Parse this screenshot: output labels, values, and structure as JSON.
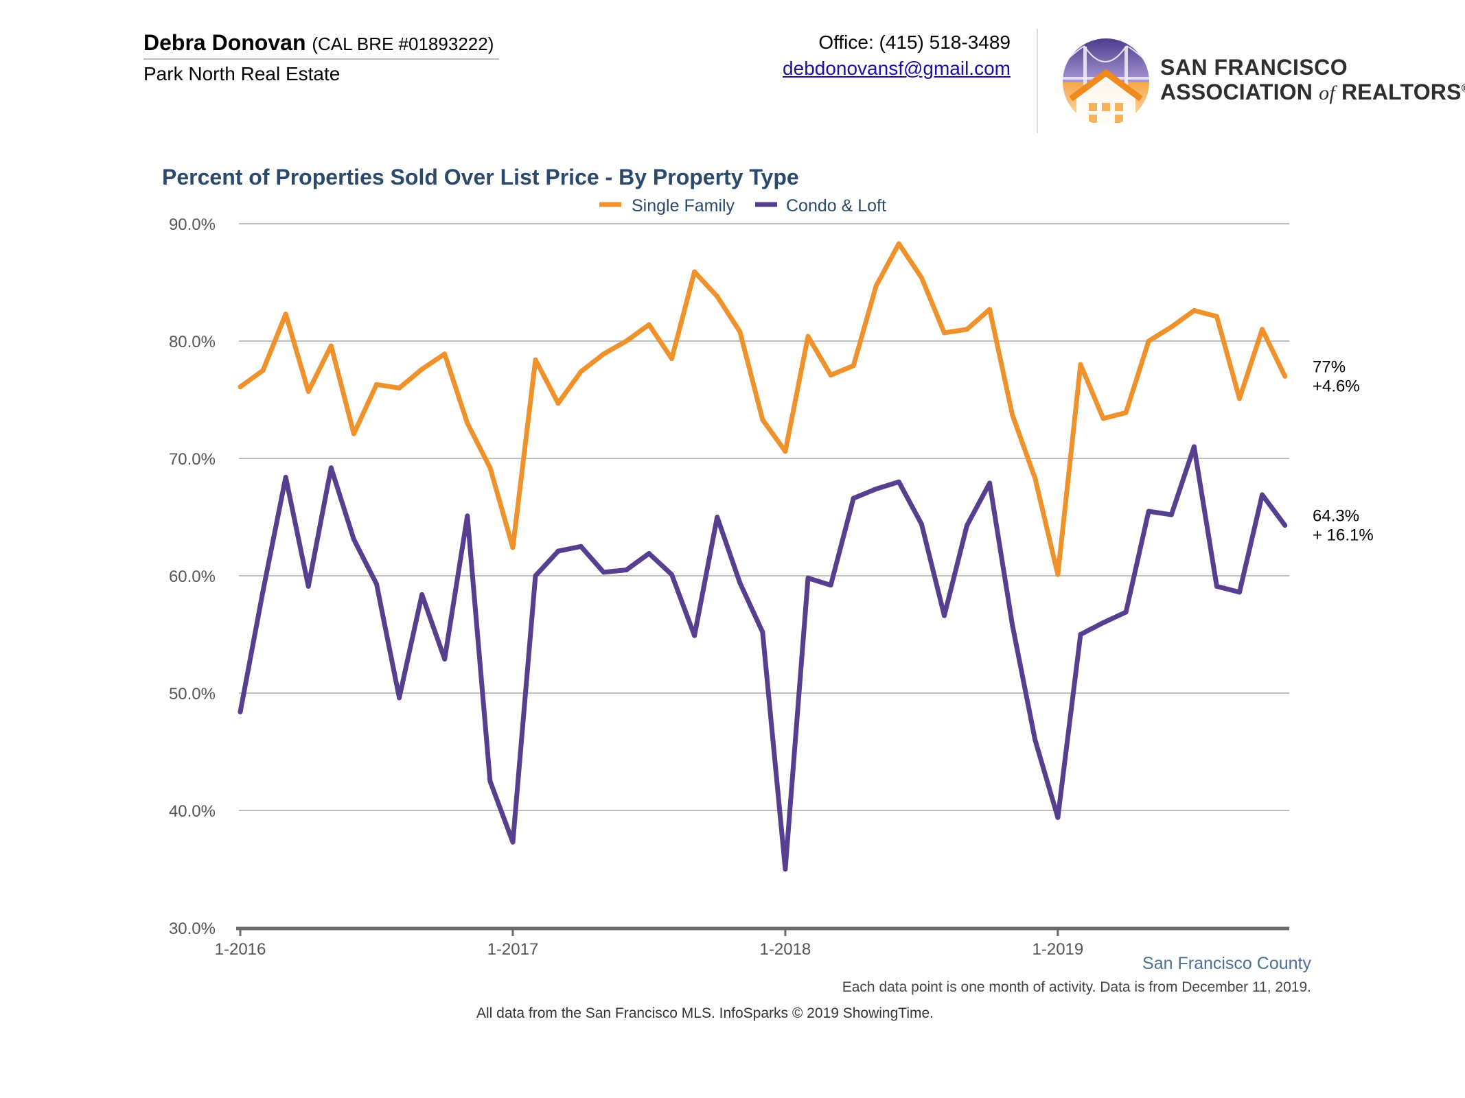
{
  "header": {
    "agent_name": "Debra Donovan",
    "license": "(CAL BRE #01893222)",
    "company": "Park North Real Estate",
    "office_phone": "Office: (415) 518-3489",
    "email": "debdonovansf@gmail.com",
    "org_line1": "SAN FRANCISCO",
    "org_line2_a": "ASSOCIATION",
    "org_line2_of": "of",
    "org_line2_b": "REALTORS",
    "org_reg": "®",
    "logo_icon": "golden-gate-bridge-house-logo-icon"
  },
  "colors": {
    "single_family": "#ef922c",
    "condo_loft": "#563f8f",
    "title": "#2b4a6b",
    "region": "#4c6f92",
    "grid": "#bdbdbd",
    "axis": "#6d6d6d"
  },
  "chart_data": {
    "type": "line",
    "title": "Percent of Properties Sold Over List Price - By Property Type",
    "xlabel": "",
    "ylabel": "",
    "ylim": [
      30,
      90
    ],
    "yticks": [
      "30.0%",
      "40.0%",
      "50.0%",
      "60.0%",
      "70.0%",
      "80.0%",
      "90.0%"
    ],
    "x_tick_labels": [
      "1-2016",
      "1-2017",
      "1-2018",
      "1-2019"
    ],
    "legend": "top-center",
    "grid": true,
    "x": [
      "2016-01",
      "2016-02",
      "2016-03",
      "2016-04",
      "2016-05",
      "2016-06",
      "2016-07",
      "2016-08",
      "2016-09",
      "2016-10",
      "2016-11",
      "2016-12",
      "2017-01",
      "2017-02",
      "2017-03",
      "2017-04",
      "2017-05",
      "2017-06",
      "2017-07",
      "2017-08",
      "2017-09",
      "2017-10",
      "2017-11",
      "2017-12",
      "2018-01",
      "2018-02",
      "2018-03",
      "2018-04",
      "2018-05",
      "2018-06",
      "2018-07",
      "2018-08",
      "2018-09",
      "2018-10",
      "2018-11",
      "2018-12",
      "2019-01",
      "2019-02",
      "2019-03",
      "2019-04",
      "2019-05",
      "2019-06",
      "2019-07",
      "2019-08",
      "2019-09",
      "2019-10",
      "2019-11"
    ],
    "series": [
      {
        "name": "Single Family",
        "values": [
          76.1,
          77.5,
          82.3,
          75.7,
          79.6,
          72.1,
          76.3,
          76.0,
          77.6,
          78.9,
          73.0,
          69.2,
          62.4,
          78.4,
          74.7,
          77.4,
          78.9,
          80.0,
          81.4,
          78.5,
          85.9,
          83.8,
          80.8,
          73.3,
          70.6,
          80.4,
          77.1,
          77.9,
          84.7,
          88.3,
          85.4,
          80.7,
          81.0,
          82.7,
          73.7,
          68.3,
          60.1,
          78.0,
          73.4,
          73.9,
          80.0,
          81.2,
          82.6,
          82.1,
          75.1,
          81.0,
          77.0
        ],
        "end_label": "77%",
        "end_change": "+4.6%"
      },
      {
        "name": "Condo & Loft",
        "values": [
          48.4,
          58.7,
          68.4,
          59.1,
          69.2,
          63.1,
          59.3,
          49.6,
          58.4,
          52.9,
          65.1,
          42.5,
          37.3,
          60.0,
          62.1,
          62.5,
          60.3,
          60.5,
          61.9,
          60.1,
          54.9,
          65.0,
          59.4,
          55.2,
          35.0,
          59.8,
          59.2,
          66.6,
          67.4,
          68.0,
          64.4,
          56.6,
          64.3,
          67.9,
          55.8,
          46.0,
          39.4,
          55.0,
          56.0,
          56.9,
          65.5,
          65.2,
          71.0,
          59.1,
          58.6,
          66.9,
          64.3
        ],
        "end_label": "64.3%",
        "end_change": "+ 16.1%"
      }
    ]
  },
  "footer": {
    "region": "San Francisco County",
    "note": "Each data point is one month of activity. Data is from December 11, 2019.",
    "source": "All data from the San Francisco MLS. InfoSparks © 2019 ShowingTime."
  }
}
